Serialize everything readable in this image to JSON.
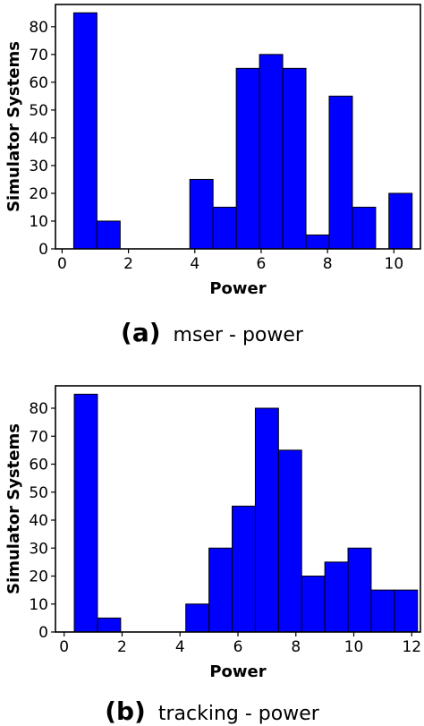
{
  "chart_data": [
    {
      "type": "bar",
      "caption_letter": "(a)",
      "caption_text": "mser - power",
      "xlabel": "Power",
      "ylabel": "Simulator Systems",
      "xlim": [
        -0.2,
        10.8
      ],
      "ylim": [
        0,
        88
      ],
      "xticks": [
        0,
        2,
        4,
        6,
        8,
        10
      ],
      "yticks": [
        0,
        10,
        20,
        30,
        40,
        50,
        60,
        70,
        80
      ],
      "bar_color": "#0000ff",
      "bins": [
        {
          "x0": 0.35,
          "x1": 1.05,
          "value": 85
        },
        {
          "x0": 1.05,
          "x1": 1.75,
          "value": 10
        },
        {
          "x0": 3.85,
          "x1": 4.55,
          "value": 25
        },
        {
          "x0": 4.55,
          "x1": 5.25,
          "value": 15
        },
        {
          "x0": 5.25,
          "x1": 5.95,
          "value": 65
        },
        {
          "x0": 5.95,
          "x1": 6.65,
          "value": 70
        },
        {
          "x0": 6.65,
          "x1": 7.35,
          "value": 65
        },
        {
          "x0": 7.35,
          "x1": 8.05,
          "value": 5
        },
        {
          "x0": 8.05,
          "x1": 8.75,
          "value": 55
        },
        {
          "x0": 8.75,
          "x1": 9.45,
          "value": 15
        },
        {
          "x0": 9.85,
          "x1": 10.55,
          "value": 20
        }
      ]
    },
    {
      "type": "bar",
      "caption_letter": "(b)",
      "caption_text": "tracking - power",
      "xlabel": "Power",
      "ylabel": "Simulator Systems",
      "xlim": [
        -0.3,
        12.3
      ],
      "ylim": [
        0,
        88
      ],
      "xticks": [
        0,
        2,
        4,
        6,
        8,
        10,
        12
      ],
      "yticks": [
        0,
        10,
        20,
        30,
        40,
        50,
        60,
        70,
        80
      ],
      "bar_color": "#0000ff",
      "bins": [
        {
          "x0": 0.35,
          "x1": 1.15,
          "value": 85
        },
        {
          "x0": 1.15,
          "x1": 1.95,
          "value": 5
        },
        {
          "x0": 4.2,
          "x1": 5.0,
          "value": 10
        },
        {
          "x0": 5.0,
          "x1": 5.8,
          "value": 30
        },
        {
          "x0": 5.8,
          "x1": 6.6,
          "value": 45
        },
        {
          "x0": 6.6,
          "x1": 7.4,
          "value": 80
        },
        {
          "x0": 7.4,
          "x1": 8.2,
          "value": 65
        },
        {
          "x0": 8.2,
          "x1": 9.0,
          "value": 20
        },
        {
          "x0": 9.0,
          "x1": 9.8,
          "value": 25
        },
        {
          "x0": 9.8,
          "x1": 10.6,
          "value": 30
        },
        {
          "x0": 10.6,
          "x1": 11.4,
          "value": 15
        },
        {
          "x0": 11.4,
          "x1": 12.2,
          "value": 15
        }
      ]
    }
  ]
}
